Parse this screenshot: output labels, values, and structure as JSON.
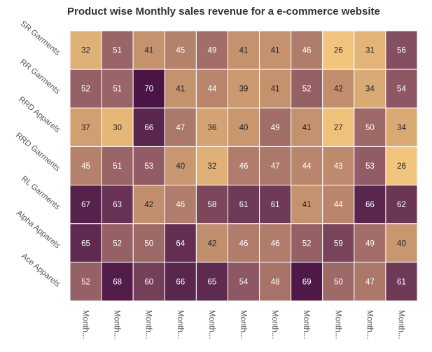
{
  "chart_data": {
    "type": "heatmap",
    "title": "Product wise Monthly sales revenue for a e-commerce website",
    "rows": [
      "SR Garments",
      "RR Garments",
      "RRD Apparels",
      "RRD Garments",
      "RL Garments",
      "Alpha Apparels",
      "Ace Apparels"
    ],
    "columns": [
      "Month...",
      "Month...",
      "Month...",
      "Month...",
      "Month...",
      "Month...",
      "Month...",
      "Month...",
      "Month...",
      "Month...",
      "Month..."
    ],
    "values": [
      [
        32,
        51,
        41,
        45,
        49,
        41,
        41,
        46,
        26,
        31,
        56
      ],
      [
        52,
        51,
        70,
        41,
        44,
        39,
        41,
        52,
        42,
        34,
        54
      ],
      [
        37,
        30,
        66,
        47,
        36,
        40,
        49,
        41,
        27,
        50,
        34
      ],
      [
        45,
        51,
        53,
        40,
        32,
        46,
        47,
        44,
        43,
        53,
        26
      ],
      [
        67,
        63,
        42,
        46,
        58,
        61,
        61,
        41,
        44,
        66,
        62
      ],
      [
        65,
        52,
        50,
        64,
        42,
        46,
        46,
        52,
        59,
        49,
        40
      ],
      [
        52,
        68,
        60,
        66,
        65,
        54,
        48,
        69,
        50,
        47,
        61
      ]
    ],
    "color_scale": {
      "min_color": "#f2c57d",
      "max_color": "#4a1545"
    },
    "grid_color": "#ffffff"
  }
}
